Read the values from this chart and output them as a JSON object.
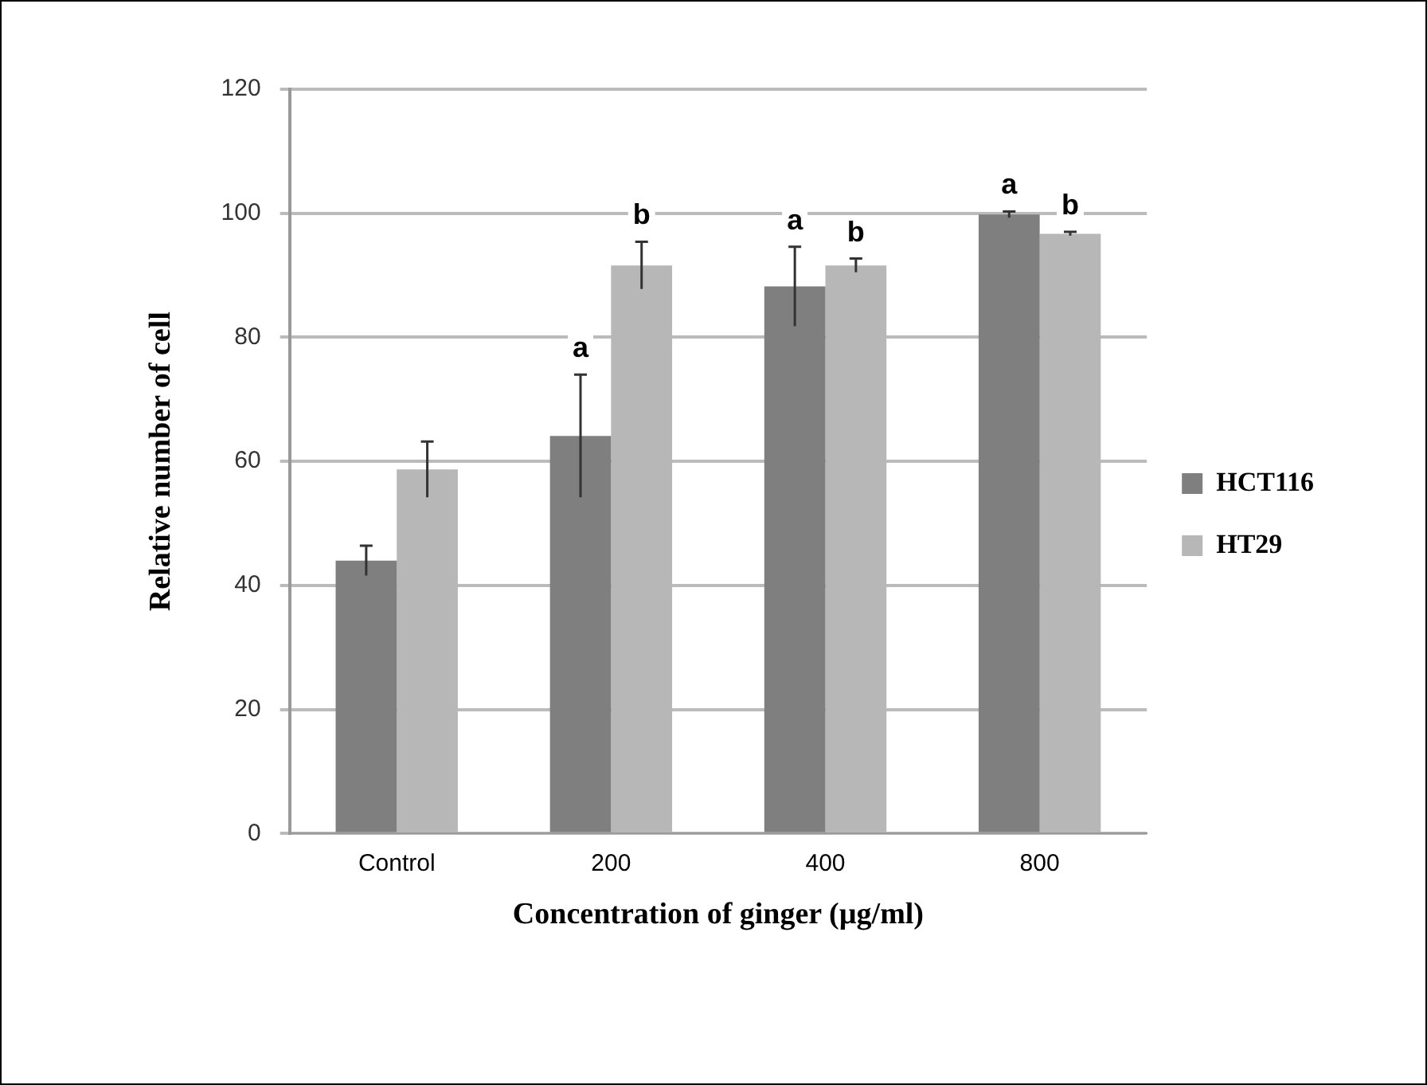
{
  "chart_data": {
    "type": "bar",
    "xlabel": "Concentration of ginger (µg/ml)",
    "ylabel": "Relative number of cell",
    "categories": [
      "Control",
      "200",
      "400",
      "800"
    ],
    "series": [
      {
        "name": "HCT116",
        "color": "#7f7f7f",
        "values": [
          44.0,
          64.1,
          88.2,
          99.8
        ],
        "errors": [
          2.4,
          9.9,
          6.4,
          0.5
        ]
      },
      {
        "name": "HT29",
        "color": "#b7b7b7",
        "values": [
          58.7,
          91.6,
          91.6,
          96.7
        ],
        "errors": [
          4.5,
          3.8,
          1.1,
          0.3
        ]
      }
    ],
    "ylim": [
      0,
      120
    ],
    "yticks": [
      0,
      20,
      40,
      60,
      80,
      100,
      120
    ],
    "grid": "y",
    "legend": "right",
    "annotations": [
      {
        "text": "a",
        "x": "200",
        "y": 64.1
      },
      {
        "text": "b",
        "x": "200",
        "y": 91.6
      },
      {
        "text": "a",
        "x": "400",
        "y": 88.2
      },
      {
        "text": "b",
        "x": "400",
        "y": 91.6
      },
      {
        "text": "a",
        "x": "800",
        "y": 99.8
      },
      {
        "text": "b",
        "x": "800",
        "y": 96.7
      }
    ]
  }
}
